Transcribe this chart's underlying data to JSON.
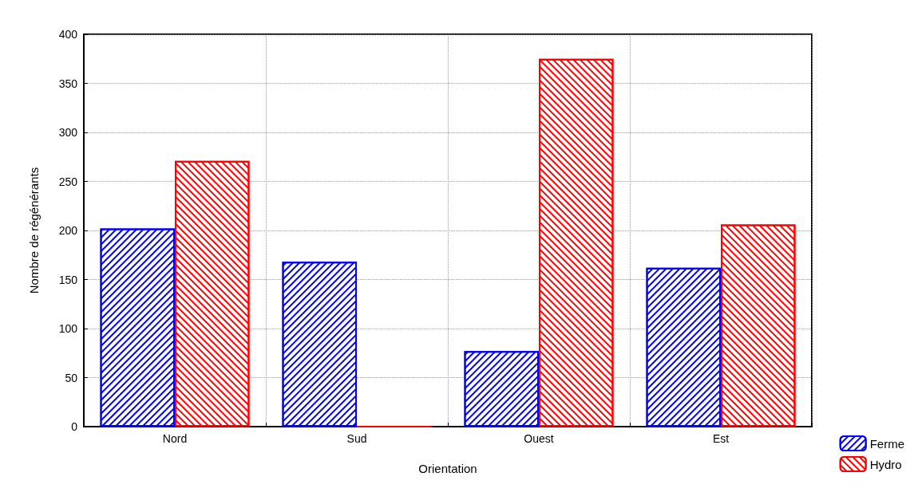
{
  "chart_data": {
    "type": "bar",
    "xlabel": "Orientation",
    "ylabel": "Nombre de régénérants",
    "categories": [
      "Nord",
      "Sud",
      "Ouest",
      "Est"
    ],
    "series": [
      {
        "name": "Ferme",
        "color": "#0000ff",
        "values": [
          202,
          168,
          77,
          162
        ]
      },
      {
        "name": "Hydro",
        "color": "#ff0000",
        "values": [
          271,
          0,
          375,
          206
        ]
      }
    ],
    "ylim": [
      0,
      400
    ],
    "yticks": [
      0,
      50,
      100,
      150,
      200,
      250,
      300,
      350,
      400
    ],
    "grid": true,
    "legend": "bottom right"
  }
}
